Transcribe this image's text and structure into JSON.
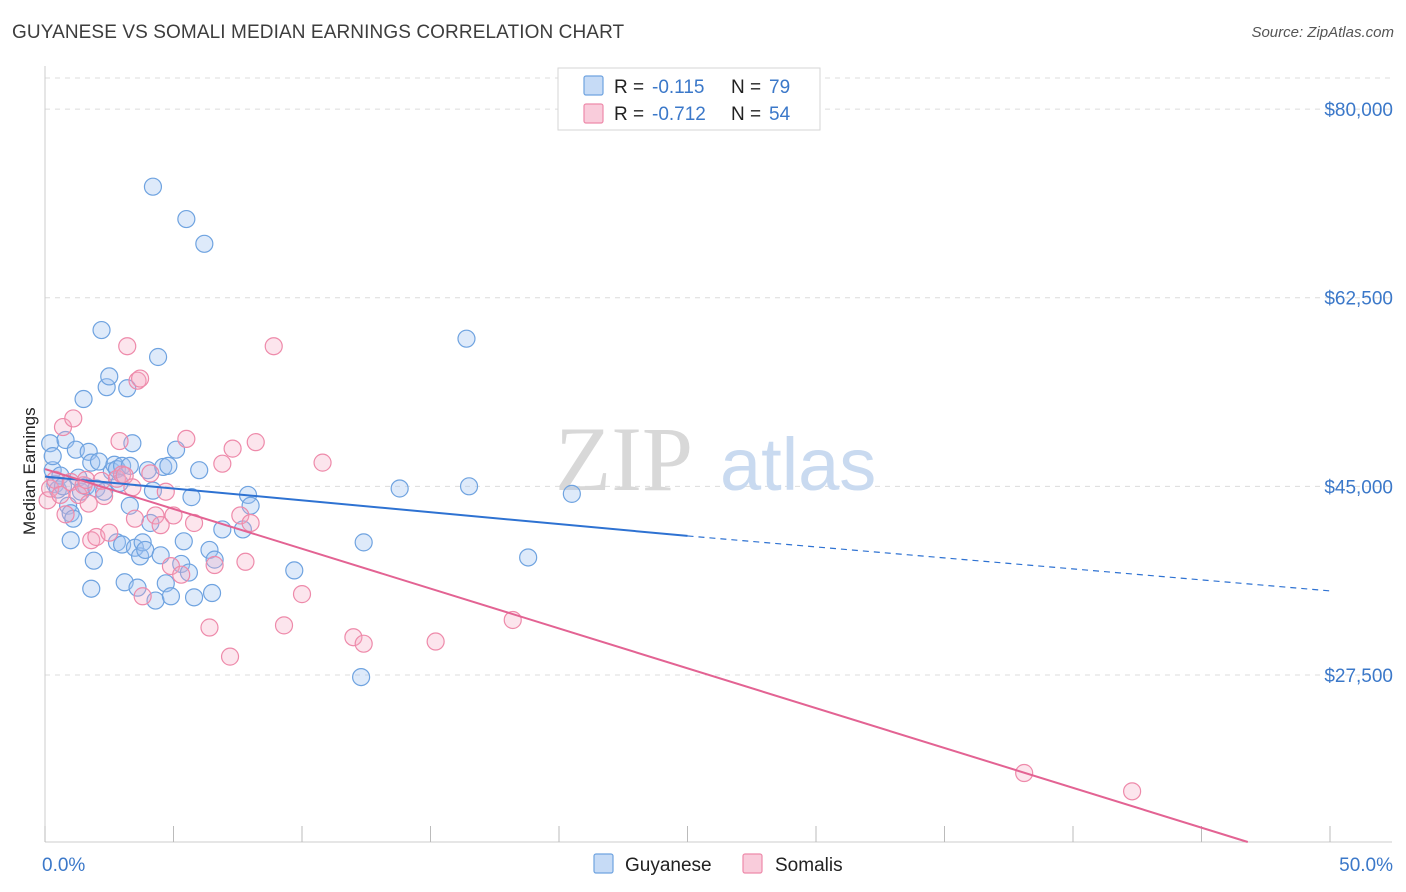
{
  "title": "GUYANESE VS SOMALI MEDIAN EARNINGS CORRELATION CHART",
  "source": "Source: ZipAtlas.com",
  "colors": {
    "guyanese": "#6fa3e0",
    "guyanese_fill": "rgba(160,195,240,0.35)",
    "guyanese_line": "#2e72d2",
    "somalis": "#ee8aaa",
    "somalis_fill": "rgba(245,170,195,0.30)",
    "somalis_line": "#e36393",
    "axis_text": "#3b78c9"
  },
  "watermark": {
    "zip": "ZIP",
    "atlas": "atlas"
  },
  "stats_legend": [
    {
      "r_label": "R =",
      "r_value": "-0.115",
      "n_label": "N =",
      "n_value": "79"
    },
    {
      "r_label": "R =",
      "r_value": "-0.712",
      "n_label": "N =",
      "n_value": "54"
    }
  ],
  "bottom_legend": [
    "Guyanese",
    "Somalis"
  ],
  "chart_data": {
    "type": "scatter",
    "ylabel": "Median Earnings",
    "xlim": [
      0,
      50
    ],
    "ylim": [
      12000,
      84000
    ],
    "x_tick_labels": {
      "left": "0.0%",
      "right": "50.0%"
    },
    "x_tick_marks": [
      0,
      5,
      10,
      15,
      20,
      25,
      30,
      35,
      40,
      45,
      50
    ],
    "y_ticks": [
      {
        "value": 80000,
        "label": "$80,000"
      },
      {
        "value": 62500,
        "label": "$62,500"
      },
      {
        "value": 45000,
        "label": "$45,000"
      },
      {
        "value": 27500,
        "label": "$27,500"
      }
    ],
    "grid": true,
    "series": [
      {
        "name": "Guyanese",
        "trend": {
          "x0": 0,
          "y0": 45900,
          "x1": 25,
          "y1": 40400,
          "dashed_to_x": 50,
          "dashed_to_y": 35300
        },
        "points": [
          [
            0.2,
            49
          ],
          [
            0.3,
            46.5
          ],
          [
            0.3,
            47.8
          ],
          [
            0.4,
            45.2
          ],
          [
            0.5,
            44.7
          ],
          [
            0.6,
            46
          ],
          [
            0.7,
            45
          ],
          [
            0.8,
            49.3
          ],
          [
            0.9,
            43.2
          ],
          [
            1.0,
            42.5
          ],
          [
            1.0,
            40
          ],
          [
            1.1,
            42
          ],
          [
            1.2,
            48.4
          ],
          [
            1.3,
            45.8
          ],
          [
            1.4,
            44.5
          ],
          [
            1.5,
            53.1
          ],
          [
            1.6,
            45
          ],
          [
            1.7,
            48.2
          ],
          [
            1.8,
            47.2
          ],
          [
            1.8,
            35.5
          ],
          [
            1.9,
            38.1
          ],
          [
            2.0,
            44.8
          ],
          [
            2.1,
            47.3
          ],
          [
            2.2,
            59.5
          ],
          [
            2.3,
            44.5
          ],
          [
            2.4,
            54.2
          ],
          [
            2.5,
            55.2
          ],
          [
            2.6,
            46.4
          ],
          [
            2.7,
            47.0
          ],
          [
            2.8,
            46.6
          ],
          [
            2.8,
            39.8
          ],
          [
            2.9,
            45.3
          ],
          [
            3.0,
            39.6
          ],
          [
            3.0,
            46.9
          ],
          [
            3.1,
            36.1
          ],
          [
            3.2,
            54.1
          ],
          [
            3.3,
            46.9
          ],
          [
            3.3,
            43.2
          ],
          [
            3.4,
            49.0
          ],
          [
            3.5,
            39.3
          ],
          [
            3.6,
            35.6
          ],
          [
            3.7,
            38.5
          ],
          [
            3.8,
            39.8
          ],
          [
            3.9,
            39.1
          ],
          [
            4.0,
            46.5
          ],
          [
            4.1,
            41.6
          ],
          [
            4.2,
            44.6
          ],
          [
            4.2,
            72.8
          ],
          [
            4.3,
            34.4
          ],
          [
            4.4,
            57.0
          ],
          [
            4.5,
            38.6
          ],
          [
            4.6,
            46.8
          ],
          [
            4.7,
            36.0
          ],
          [
            4.8,
            46.9
          ],
          [
            4.9,
            34.8
          ],
          [
            5.1,
            48.4
          ],
          [
            5.3,
            37.8
          ],
          [
            5.4,
            39.9
          ],
          [
            5.5,
            69.8
          ],
          [
            5.6,
            37.0
          ],
          [
            5.7,
            44.0
          ],
          [
            5.8,
            34.7
          ],
          [
            6.0,
            46.5
          ],
          [
            6.2,
            67.5
          ],
          [
            6.4,
            39.1
          ],
          [
            6.5,
            35.1
          ],
          [
            6.6,
            38.2
          ],
          [
            6.9,
            41.0
          ],
          [
            7.7,
            41.0
          ],
          [
            7.9,
            44.2
          ],
          [
            8.0,
            43.2
          ],
          [
            9.7,
            37.2
          ],
          [
            12.3,
            27.3
          ],
          [
            12.4,
            39.8
          ],
          [
            13.8,
            44.8
          ],
          [
            16.4,
            58.7
          ],
          [
            16.5,
            45.0
          ],
          [
            18.8,
            38.4
          ],
          [
            20.5,
            44.3
          ]
        ]
      },
      {
        "name": "Somalis",
        "trend": {
          "x0": 0,
          "y0": 46600,
          "x1": 46.8,
          "y1": 12000
        },
        "points": [
          [
            0.1,
            43.7
          ],
          [
            0.2,
            44.8
          ],
          [
            0.4,
            45.6
          ],
          [
            0.6,
            44.2
          ],
          [
            0.7,
            50.5
          ],
          [
            0.8,
            42.4
          ],
          [
            1.0,
            45.4
          ],
          [
            1.1,
            51.3
          ],
          [
            1.3,
            44.2
          ],
          [
            1.5,
            45.1
          ],
          [
            1.6,
            45.6
          ],
          [
            1.7,
            43.4
          ],
          [
            1.8,
            40.0
          ],
          [
            2.0,
            40.3
          ],
          [
            2.2,
            45.5
          ],
          [
            2.3,
            44.1
          ],
          [
            2.5,
            40.7
          ],
          [
            2.8,
            45.7
          ],
          [
            2.9,
            49.2
          ],
          [
            3.0,
            46.1
          ],
          [
            3.1,
            46.0
          ],
          [
            3.2,
            58.0
          ],
          [
            3.4,
            44.9
          ],
          [
            3.5,
            42.0
          ],
          [
            3.6,
            54.8
          ],
          [
            3.7,
            55.0
          ],
          [
            3.8,
            34.8
          ],
          [
            4.1,
            46.2
          ],
          [
            4.3,
            42.3
          ],
          [
            4.5,
            41.4
          ],
          [
            4.7,
            44.5
          ],
          [
            4.9,
            37.6
          ],
          [
            5.0,
            42.3
          ],
          [
            5.3,
            36.8
          ],
          [
            5.5,
            49.4
          ],
          [
            5.8,
            41.6
          ],
          [
            6.4,
            31.9
          ],
          [
            6.6,
            37.7
          ],
          [
            6.9,
            47.1
          ],
          [
            7.2,
            29.2
          ],
          [
            7.3,
            48.5
          ],
          [
            7.6,
            42.3
          ],
          [
            7.8,
            38.0
          ],
          [
            8.0,
            41.6
          ],
          [
            8.2,
            49.1
          ],
          [
            8.9,
            58.0
          ],
          [
            9.3,
            32.1
          ],
          [
            10.0,
            35.0
          ],
          [
            10.8,
            47.2
          ],
          [
            12.0,
            31.0
          ],
          [
            12.4,
            30.4
          ],
          [
            15.2,
            30.6
          ],
          [
            18.2,
            32.6
          ],
          [
            38.1,
            18.4
          ]
        ],
        "extra_points": [
          [
            42.3,
            16.7
          ]
        ]
      }
    ]
  }
}
